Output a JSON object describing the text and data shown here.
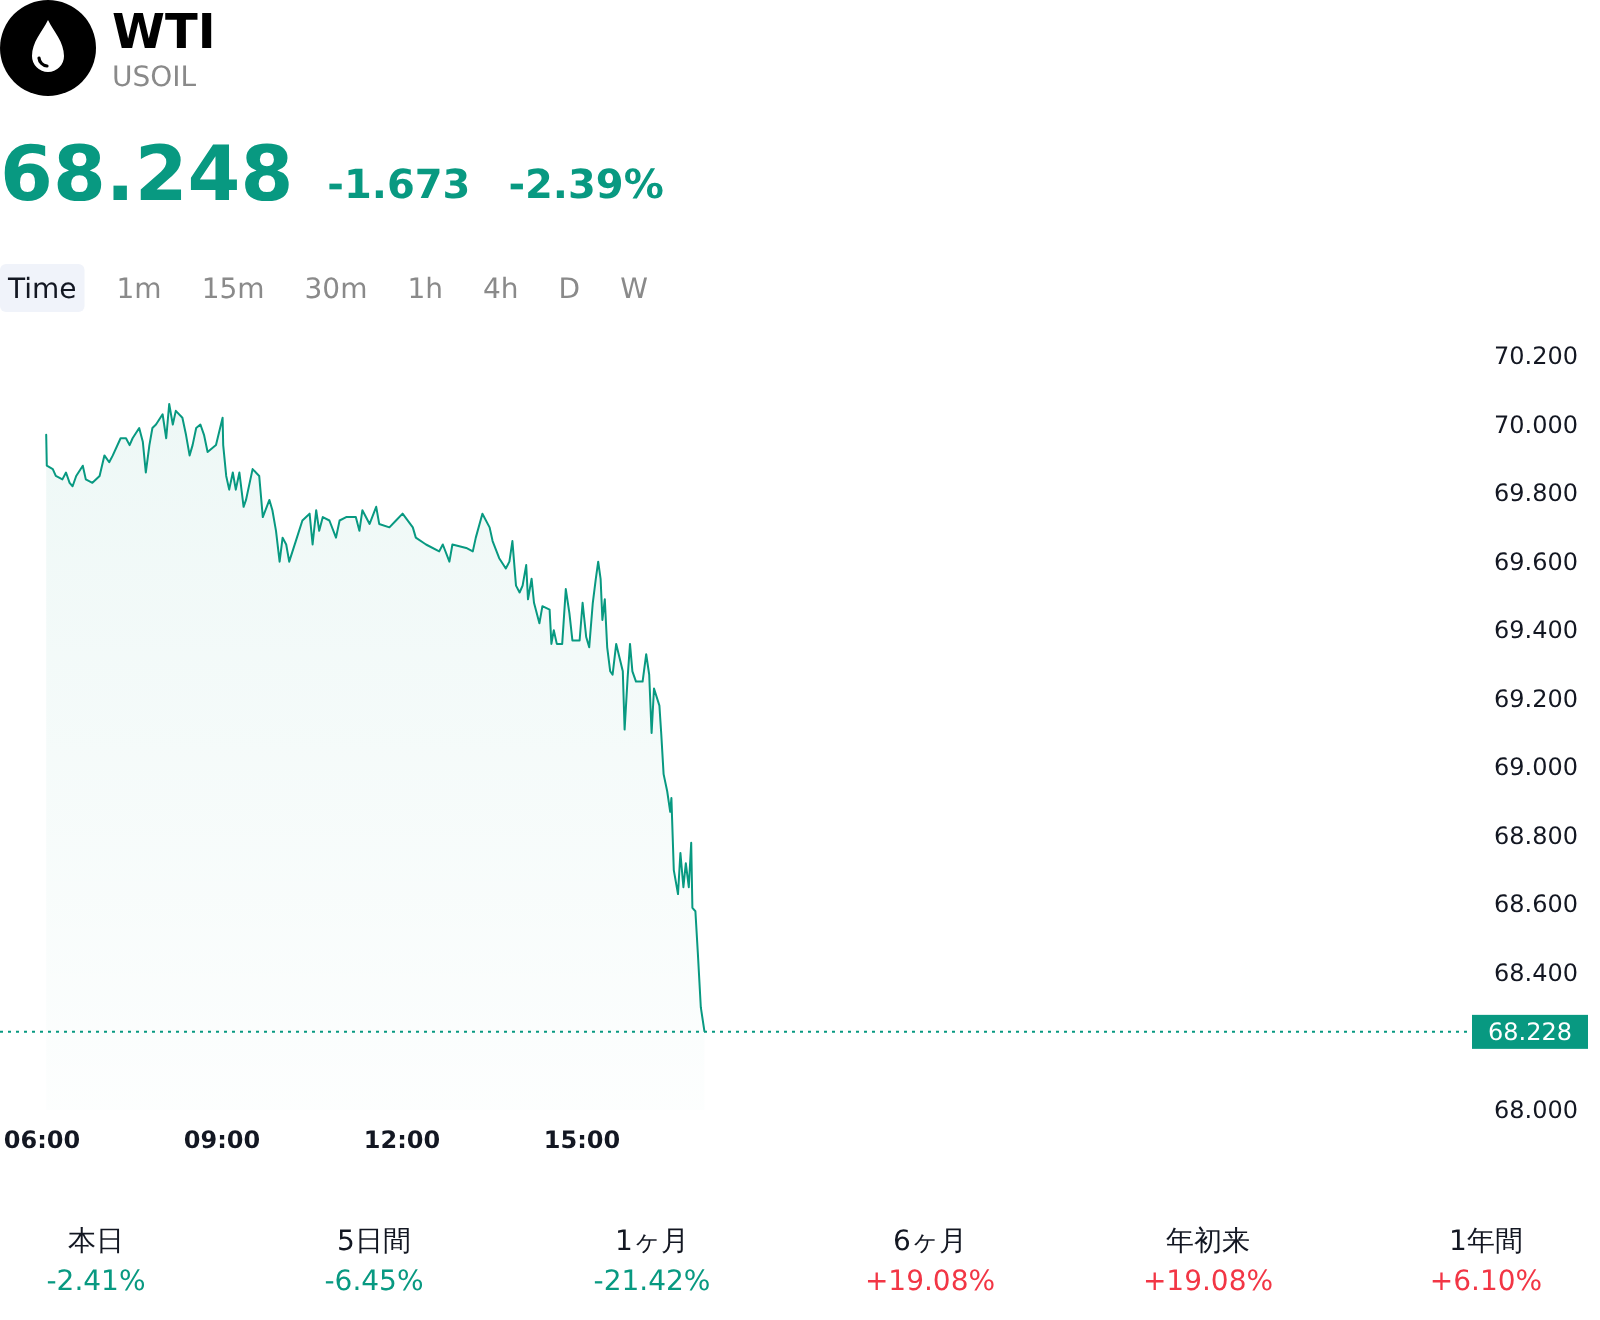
{
  "chart_data": [
    {
      "type": "other",
      "title": "WTI",
      "subtitle": "USOIL",
      "annotations": [
        "68.248",
        "-1.673",
        "-2.39%"
      ]
    },
    {
      "type": "other",
      "categories": [
        "Time",
        "1m",
        "15m",
        "30m",
        "1h",
        "4h",
        "D",
        "W"
      ]
    },
    {
      "type": "area",
      "x": [
        6.07,
        6.08,
        6.18,
        6.23,
        6.34,
        6.4,
        6.46,
        6.51,
        6.57,
        6.68,
        6.73,
        6.84,
        6.96,
        7.04,
        7.12,
        7.18,
        7.31,
        7.4,
        7.46,
        7.51,
        7.62,
        7.68,
        7.73,
        7.79,
        7.84,
        7.9,
        8.01,
        8.07,
        8.12,
        8.18,
        8.23,
        8.34,
        8.4,
        8.46,
        8.51,
        8.57,
        8.64,
        8.7,
        8.76,
        8.9,
        9.01,
        9.02,
        9.07,
        9.12,
        9.18,
        9.23,
        9.29,
        9.36,
        9.4,
        9.51,
        9.62,
        9.68,
        9.79,
        9.84,
        9.9,
        9.96,
        10.01,
        10.07,
        10.12,
        10.23,
        10.34,
        10.46,
        10.51,
        10.57,
        10.62,
        10.68,
        10.79,
        10.9,
        10.96,
        11.07,
        11.23,
        11.29,
        11.34,
        11.46,
        11.57,
        11.62,
        11.79,
        11.9,
        12.01,
        12.18,
        12.23,
        12.4,
        12.62,
        12.68,
        12.79,
        12.84,
        13.07,
        13.18,
        13.23,
        13.34,
        13.46,
        13.51,
        13.62,
        13.73,
        13.79,
        13.84,
        13.9,
        13.96,
        14.01,
        14.07,
        14.1,
        14.16,
        14.2,
        14.29,
        14.34,
        14.46,
        14.49,
        14.53,
        14.58,
        14.67,
        14.73,
        14.79,
        14.84,
        14.96,
        15.01,
        15.07,
        15.12,
        15.18,
        15.23,
        15.27,
        15.31,
        15.34,
        15.38,
        15.42,
        15.47,
        15.51,
        15.57,
        15.68,
        15.71,
        15.76,
        15.8,
        15.84,
        15.9,
        16.01,
        16.07,
        16.12,
        16.16,
        16.2,
        16.29,
        16.32,
        16.36,
        16.42,
        16.47,
        16.49,
        16.53,
        16.6,
        16.64,
        16.69,
        16.73,
        16.78,
        16.82,
        16.84,
        16.89,
        16.93,
        16.98,
        17.04
      ],
      "series": [
        {
          "color": "#089981",
          "values": [
            69.97,
            69.88,
            69.87,
            69.85,
            69.84,
            69.86,
            69.83,
            69.82,
            69.85,
            69.88,
            69.84,
            69.83,
            69.85,
            69.91,
            69.89,
            69.91,
            69.96,
            69.96,
            69.94,
            69.96,
            69.99,
            69.95,
            69.86,
            69.94,
            69.99,
            70.0,
            70.03,
            69.96,
            70.06,
            70.0,
            70.04,
            70.02,
            69.97,
            69.91,
            69.94,
            69.99,
            70.0,
            69.97,
            69.92,
            69.94,
            70.02,
            69.94,
            69.85,
            69.81,
            69.86,
            69.81,
            69.86,
            69.76,
            69.78,
            69.87,
            69.85,
            69.73,
            69.78,
            69.75,
            69.69,
            69.6,
            69.67,
            69.65,
            69.6,
            69.66,
            69.72,
            69.74,
            69.65,
            69.75,
            69.69,
            69.73,
            69.72,
            69.67,
            69.72,
            69.73,
            69.73,
            69.69,
            69.75,
            69.71,
            69.76,
            69.71,
            69.7,
            69.72,
            69.74,
            69.7,
            69.67,
            69.65,
            69.63,
            69.65,
            69.6,
            69.65,
            69.64,
            69.63,
            69.67,
            69.74,
            69.7,
            69.66,
            69.61,
            69.58,
            69.6,
            69.66,
            69.53,
            69.51,
            69.53,
            69.59,
            69.49,
            69.55,
            69.48,
            69.42,
            69.47,
            69.46,
            69.36,
            69.4,
            69.36,
            69.36,
            69.52,
            69.45,
            69.37,
            69.37,
            69.48,
            69.38,
            69.35,
            69.48,
            69.55,
            69.6,
            69.55,
            69.43,
            69.49,
            69.35,
            69.28,
            69.27,
            69.36,
            69.28,
            69.11,
            69.26,
            69.36,
            69.28,
            69.25,
            69.25,
            69.33,
            69.27,
            69.1,
            69.23,
            69.18,
            69.1,
            68.98,
            68.93,
            68.87,
            68.91,
            68.7,
            68.63,
            68.75,
            68.65,
            68.72,
            68.65,
            68.78,
            68.59,
            68.58,
            68.46,
            68.3,
            68.23
          ]
        }
      ],
      "xlim": [
        5.3,
        29.8
      ],
      "xticks": [
        {
          "value": 6,
          "label": "06:00"
        },
        {
          "value": 9,
          "label": "09:00"
        },
        {
          "value": 12,
          "label": "12:00"
        },
        {
          "value": 15,
          "label": "15:00"
        }
      ],
      "ylim": [
        68,
        70.2
      ],
      "yticks": [
        {
          "value": 68,
          "label": "68.000"
        },
        {
          "value": 68.4,
          "label": "68.400"
        },
        {
          "value": 68.6,
          "label": "68.600"
        },
        {
          "value": 68.8,
          "label": "68.800"
        },
        {
          "value": 69,
          "label": "69.000"
        },
        {
          "value": 69.2,
          "label": "69.200"
        },
        {
          "value": 69.4,
          "label": "69.400"
        },
        {
          "value": 69.6,
          "label": "69.600"
        },
        {
          "value": 69.8,
          "label": "69.800"
        },
        {
          "value": 70,
          "label": "70.000"
        },
        {
          "value": 70.2,
          "label": "70.200"
        }
      ],
      "ref_lines": [
        {
          "axis": "y",
          "value": 68.228,
          "label": "68.228",
          "color": "#089981",
          "line_style": "dotted"
        }
      ]
    },
    {
      "type": "other",
      "categories": [
        "本日",
        "5日間",
        "1ヶ月",
        "6ヶ月",
        "年初来",
        "1年間"
      ],
      "value_labels": [
        "-2.41%",
        "-6.45%",
        "-21.42%",
        "+19.08%",
        "+19.08%",
        "+6.10%"
      ],
      "colors": [
        "#089981",
        "#089981",
        "#089981",
        "#f23645",
        "#f23645",
        "#f23645"
      ]
    }
  ]
}
